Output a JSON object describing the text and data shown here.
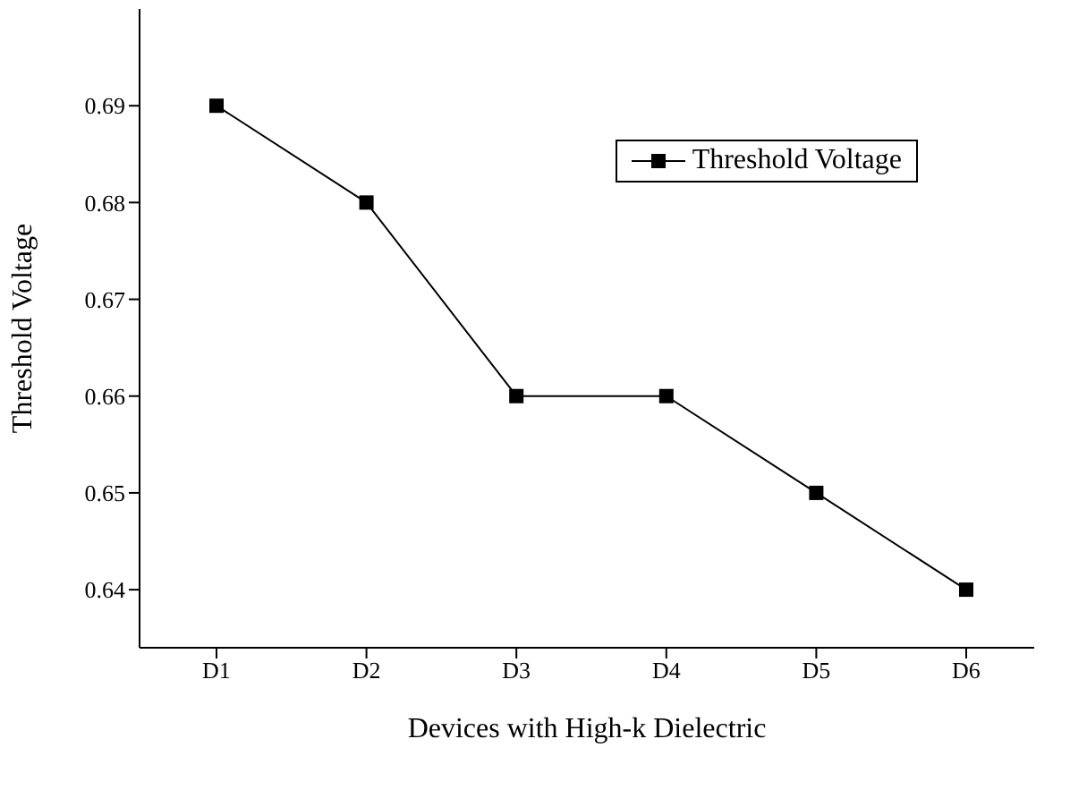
{
  "chart_data": {
    "type": "line",
    "xlabel": "Devices with High-k Dielectric",
    "ylabel": "Threshold Voltage",
    "categories": [
      "D1",
      "D2",
      "D3",
      "D4",
      "D5",
      "D6"
    ],
    "series": [
      {
        "name": "Threshold Voltage",
        "color": "#000000",
        "values": [
          0.69,
          0.68,
          0.66,
          0.66,
          0.65,
          0.64
        ]
      }
    ],
    "ylim": [
      0.634,
      0.7
    ],
    "yticks": [
      0.64,
      0.65,
      0.66,
      0.67,
      0.68,
      0.69
    ],
    "grid": false,
    "legend": "top right",
    "marker": "square",
    "line_style": "solid"
  }
}
